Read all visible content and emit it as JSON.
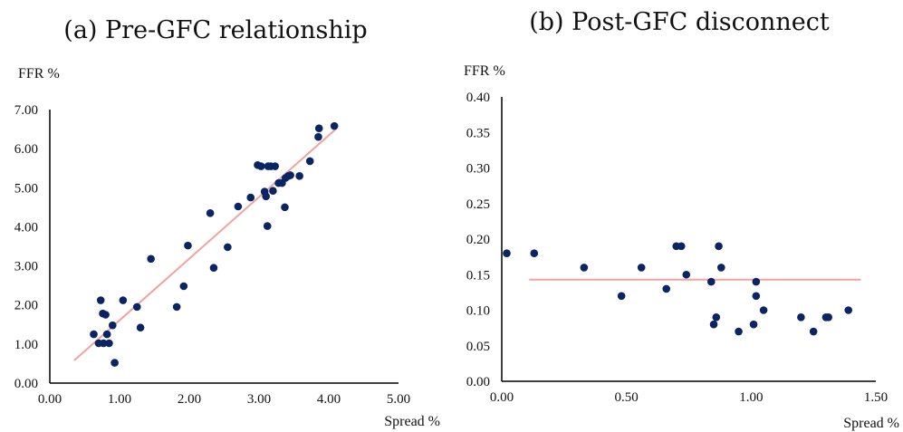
{
  "chart_data": [
    {
      "type": "scatter",
      "title": "(a) Pre-GFC relationship",
      "xlabel": "Spread %",
      "ylabel": "FFR %",
      "xlim": [
        0,
        5
      ],
      "ylim": [
        0,
        7
      ],
      "xticks": [
        "0.00",
        "1.00",
        "2.00",
        "3.00",
        "4.00",
        "5.00"
      ],
      "yticks": [
        "0.00",
        "1.00",
        "2.00",
        "3.00",
        "4.00",
        "5.00",
        "6.00",
        "7.00"
      ],
      "trendline": [
        [
          0.35,
          0.58
        ],
        [
          4.1,
          6.5
        ]
      ],
      "points": [
        [
          0.63,
          1.25
        ],
        [
          0.7,
          1.02
        ],
        [
          0.73,
          2.12
        ],
        [
          0.76,
          1.78
        ],
        [
          0.77,
          1.02
        ],
        [
          0.8,
          1.75
        ],
        [
          0.82,
          1.25
        ],
        [
          0.85,
          1.02
        ],
        [
          0.9,
          1.48
        ],
        [
          0.93,
          0.52
        ],
        [
          1.05,
          2.12
        ],
        [
          1.25,
          1.95
        ],
        [
          1.3,
          1.42
        ],
        [
          1.45,
          3.18
        ],
        [
          1.82,
          1.95
        ],
        [
          1.92,
          2.48
        ],
        [
          1.98,
          3.52
        ],
        [
          2.3,
          4.35
        ],
        [
          2.35,
          2.95
        ],
        [
          2.55,
          3.48
        ],
        [
          2.7,
          4.52
        ],
        [
          2.88,
          4.75
        ],
        [
          2.98,
          5.58
        ],
        [
          3.03,
          5.55
        ],
        [
          3.08,
          4.9
        ],
        [
          3.1,
          4.78
        ],
        [
          3.12,
          4.02
        ],
        [
          3.13,
          5.55
        ],
        [
          3.17,
          5.55
        ],
        [
          3.2,
          4.92
        ],
        [
          3.23,
          5.55
        ],
        [
          3.28,
          5.12
        ],
        [
          3.33,
          5.12
        ],
        [
          3.37,
          4.5
        ],
        [
          3.38,
          5.25
        ],
        [
          3.42,
          5.3
        ],
        [
          3.45,
          5.32
        ],
        [
          3.58,
          5.3
        ],
        [
          3.73,
          5.68
        ],
        [
          3.85,
          6.3
        ],
        [
          3.86,
          6.52
        ],
        [
          4.08,
          6.58
        ]
      ]
    },
    {
      "type": "scatter",
      "title": "(b) Post-GFC disconnect",
      "xlabel": "Spread %",
      "ylabel": "FFR %",
      "xlim": [
        0,
        1.5
      ],
      "ylim": [
        0,
        0.4
      ],
      "xticks": [
        "0.00",
        "0.50",
        "1.00",
        "1.50"
      ],
      "yticks": [
        "0.00",
        "0.05",
        "0.10",
        "0.15",
        "0.20",
        "0.25",
        "0.30",
        "0.35",
        "0.40"
      ],
      "trendline": [
        [
          0.11,
          0.143
        ],
        [
          1.44,
          0.143
        ]
      ],
      "points": [
        [
          0.02,
          0.18
        ],
        [
          0.13,
          0.18
        ],
        [
          0.33,
          0.16
        ],
        [
          0.48,
          0.12
        ],
        [
          0.56,
          0.16
        ],
        [
          0.66,
          0.13
        ],
        [
          0.7,
          0.19
        ],
        [
          0.72,
          0.19
        ],
        [
          0.74,
          0.15
        ],
        [
          0.84,
          0.14
        ],
        [
          0.85,
          0.08
        ],
        [
          0.86,
          0.09
        ],
        [
          0.87,
          0.19
        ],
        [
          0.88,
          0.16
        ],
        [
          0.95,
          0.07
        ],
        [
          1.01,
          0.08
        ],
        [
          1.02,
          0.12
        ],
        [
          1.02,
          0.14
        ],
        [
          1.05,
          0.1
        ],
        [
          1.2,
          0.09
        ],
        [
          1.25,
          0.07
        ],
        [
          1.3,
          0.09
        ],
        [
          1.31,
          0.09
        ],
        [
          1.39,
          0.1
        ]
      ]
    }
  ]
}
